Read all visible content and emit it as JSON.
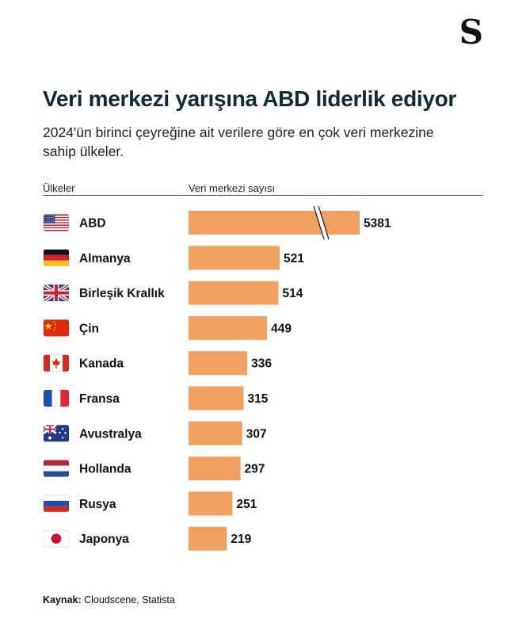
{
  "logo": "S",
  "title": "Veri merkezi yarışına ABD liderlik ediyor",
  "subtitle": "2024'ün birinci çeyreğine ait verilere göre en çok veri merkezine sahip ülkeler.",
  "headers": {
    "left": "Ülkeler",
    "right": "Veri merkezi sayısı"
  },
  "source": {
    "label": "Kaynak:",
    "text": "Cloudscene, Statista"
  },
  "colors": {
    "bar": "#f0a061",
    "title": "#102a3a"
  },
  "chart_data": {
    "type": "bar",
    "orientation": "horizontal",
    "axis_break": {
      "category": "ABD"
    },
    "categories": [
      "ABD",
      "Almanya",
      "Birleşik Krallık",
      "Çin",
      "Kanada",
      "Fransa",
      "Avustralya",
      "Hollanda",
      "Rusya",
      "Japonya"
    ],
    "values": [
      5381,
      521,
      514,
      449,
      336,
      315,
      307,
      297,
      251,
      219
    ],
    "flags": [
      "us-flag-icon",
      "germany-flag-icon",
      "uk-flag-icon",
      "china-flag-icon",
      "canada-flag-icon",
      "france-flag-icon",
      "australia-flag-icon",
      "netherlands-flag-icon",
      "russia-flag-icon",
      "japan-flag-icon"
    ]
  }
}
